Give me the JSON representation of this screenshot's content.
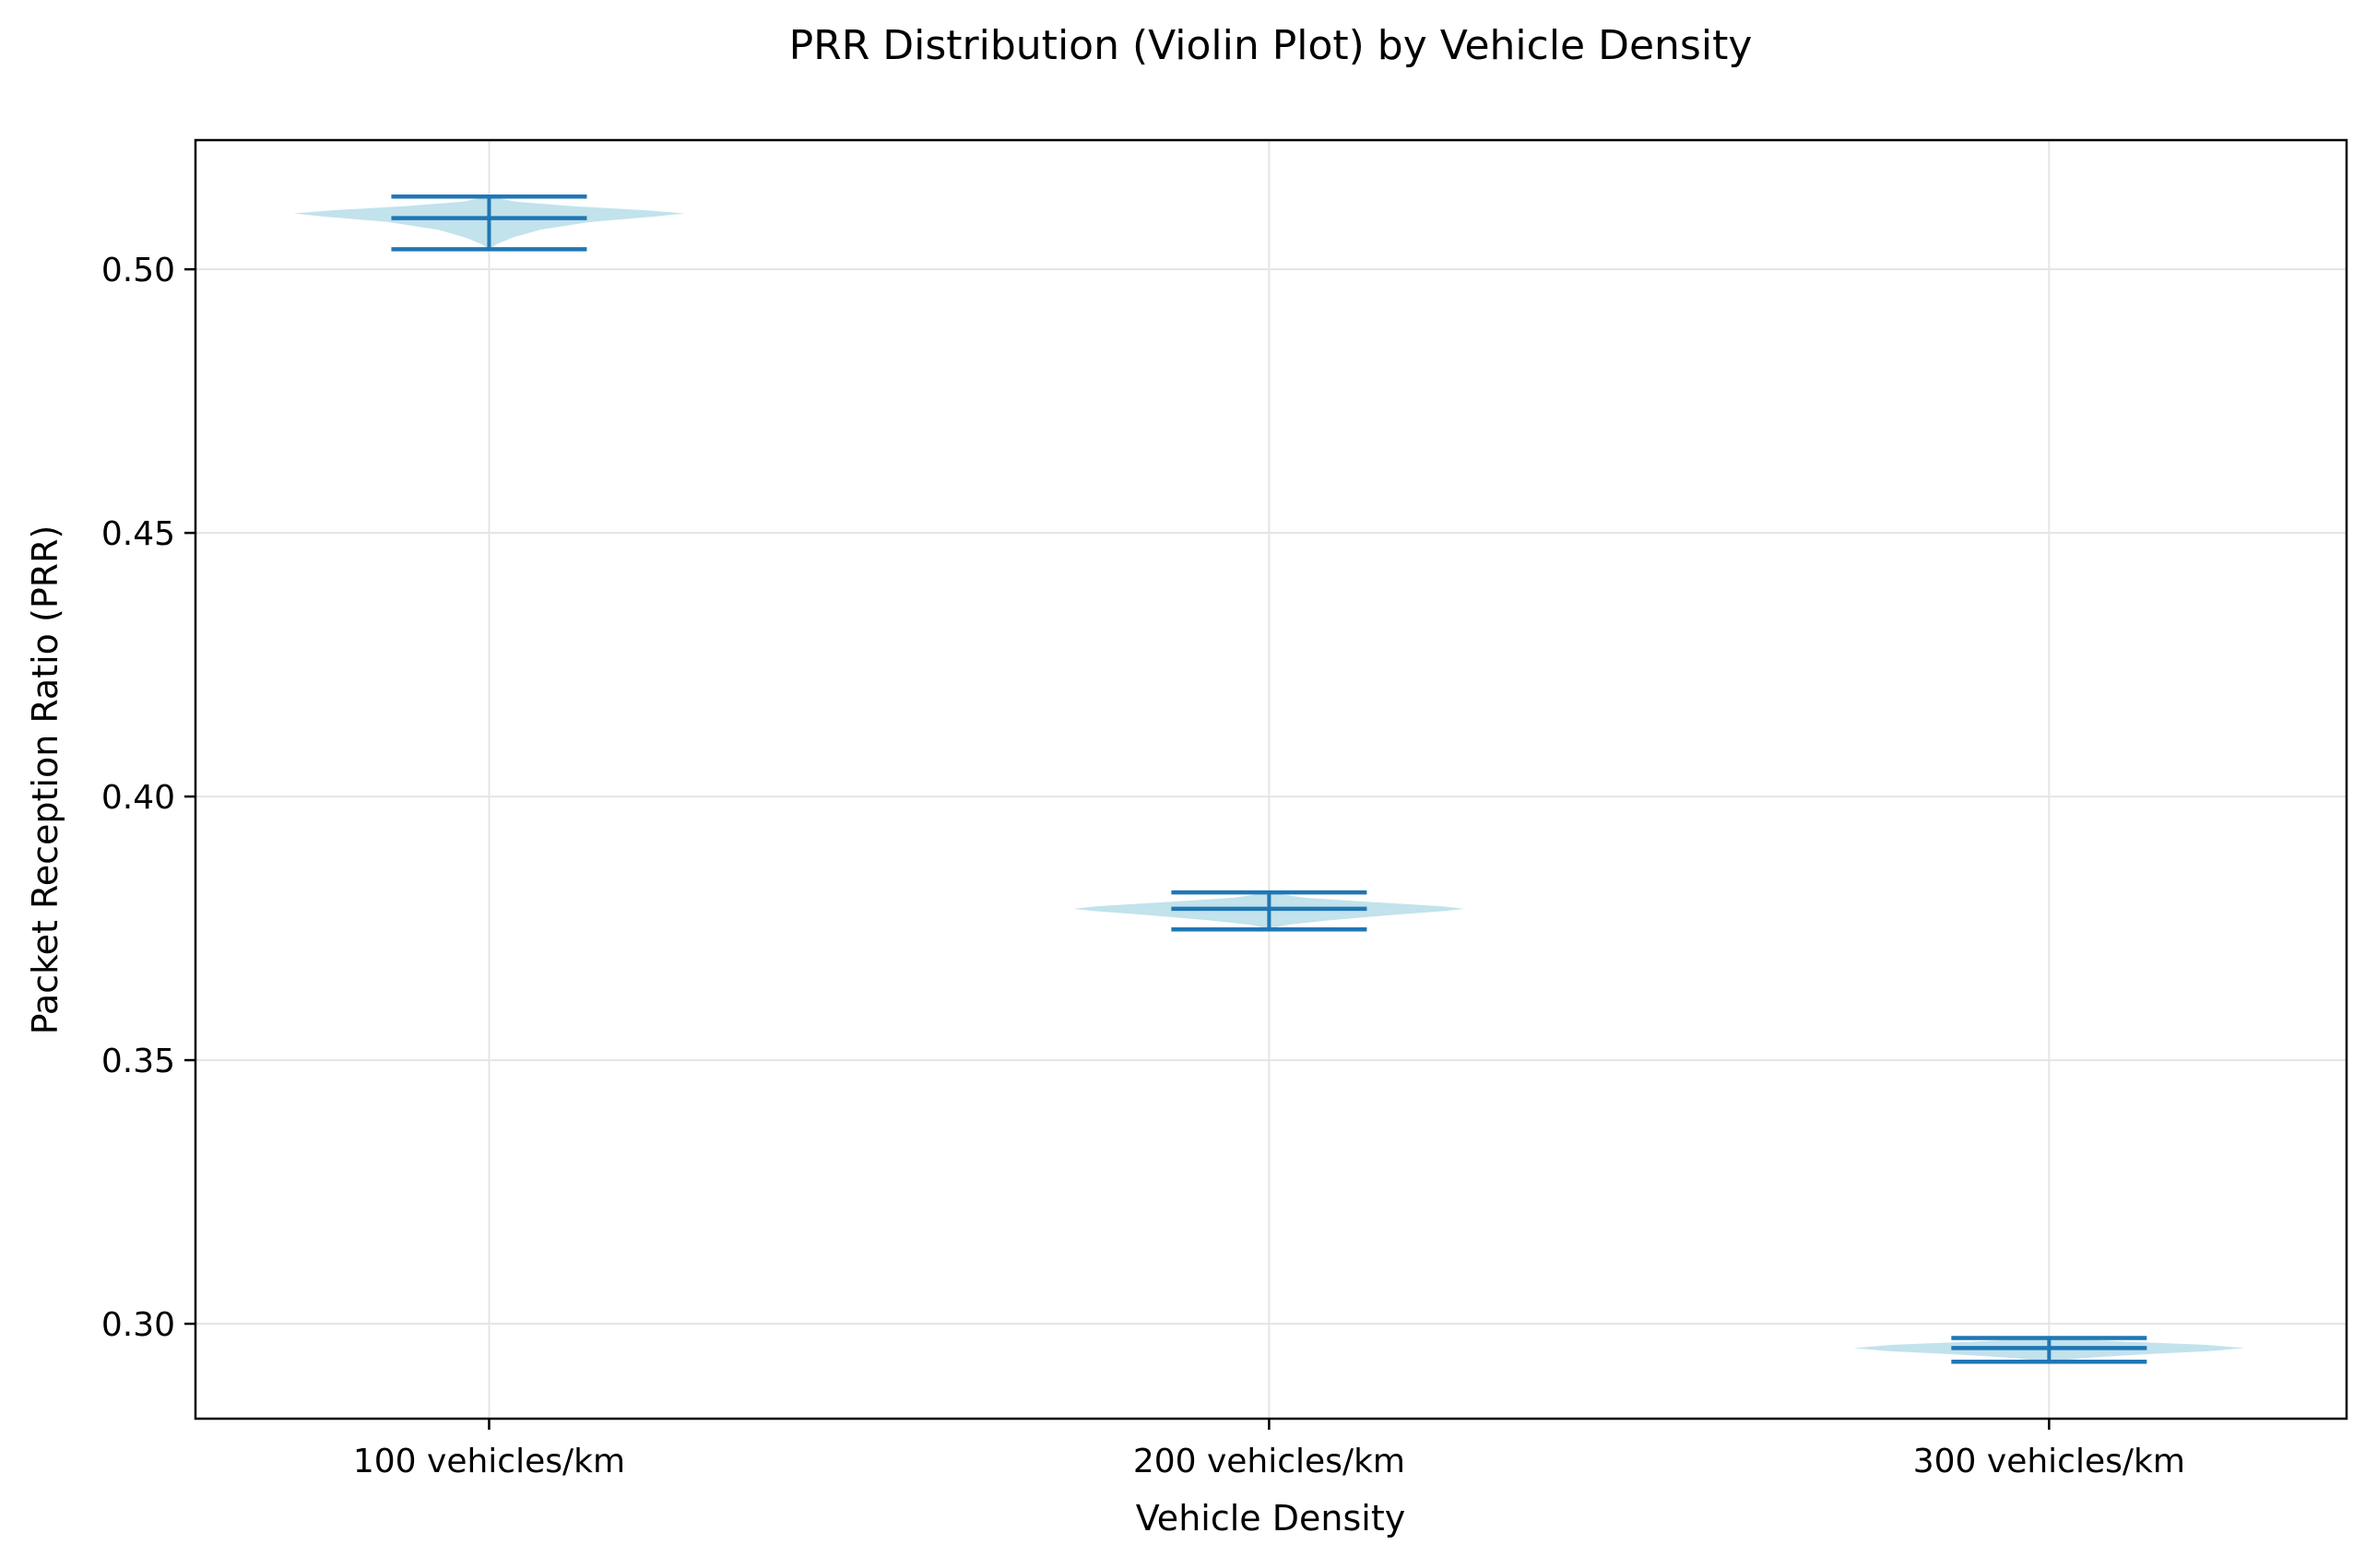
{
  "chart_data": {
    "type": "violin",
    "title": "PRR Distribution (Violin Plot) by Vehicle Density",
    "xlabel": "Vehicle Density",
    "ylabel": "Packet Reception Ratio (PRR)",
    "categories": [
      "100 vehicles/km",
      "200 vehicles/km",
      "300 vehicles/km"
    ],
    "ylim": [
      0.282,
      0.5245
    ],
    "yticks": [
      0.3,
      0.35,
      0.4,
      0.45,
      0.5
    ],
    "ytick_labels": [
      "0.30",
      "0.35",
      "0.40",
      "0.45",
      "0.50"
    ],
    "grid": true,
    "violins": [
      {
        "category": "100 vehicles/km",
        "min": 0.5038,
        "max": 0.5138,
        "median": 0.5097,
        "density_peak": 0.5105,
        "density_profile": [
          [
            0.5038,
            0.0
          ],
          [
            0.5048,
            0.04
          ],
          [
            0.506,
            0.12
          ],
          [
            0.5075,
            0.26
          ],
          [
            0.509,
            0.52
          ],
          [
            0.51,
            0.85
          ],
          [
            0.5106,
            1.0
          ],
          [
            0.5112,
            0.8
          ],
          [
            0.512,
            0.42
          ],
          [
            0.5128,
            0.14
          ],
          [
            0.5138,
            0.0
          ]
        ]
      },
      {
        "category": "200 vehicles/km",
        "min": 0.3748,
        "max": 0.3818,
        "median": 0.3787,
        "density_peak": 0.3787,
        "density_profile": [
          [
            0.3748,
            0.0
          ],
          [
            0.3756,
            0.08
          ],
          [
            0.3765,
            0.3
          ],
          [
            0.3775,
            0.62
          ],
          [
            0.3783,
            0.9
          ],
          [
            0.3787,
            1.0
          ],
          [
            0.3792,
            0.88
          ],
          [
            0.38,
            0.52
          ],
          [
            0.3808,
            0.18
          ],
          [
            0.3818,
            0.0
          ]
        ]
      },
      {
        "category": "300 vehicles/km",
        "min": 0.2928,
        "max": 0.2973,
        "median": 0.2954,
        "density_peak": 0.2954,
        "density_profile": [
          [
            0.2928,
            0.0
          ],
          [
            0.2935,
            0.18
          ],
          [
            0.2942,
            0.48
          ],
          [
            0.2948,
            0.82
          ],
          [
            0.2954,
            1.0
          ],
          [
            0.296,
            0.8
          ],
          [
            0.2966,
            0.4
          ],
          [
            0.2973,
            0.0
          ]
        ]
      }
    ],
    "colors": {
      "body_fill": "#add8e6",
      "body_opacity": 0.75,
      "stat_lines": "#1f77b4",
      "grid": "#e5e5e5",
      "axes": "#000000"
    }
  }
}
